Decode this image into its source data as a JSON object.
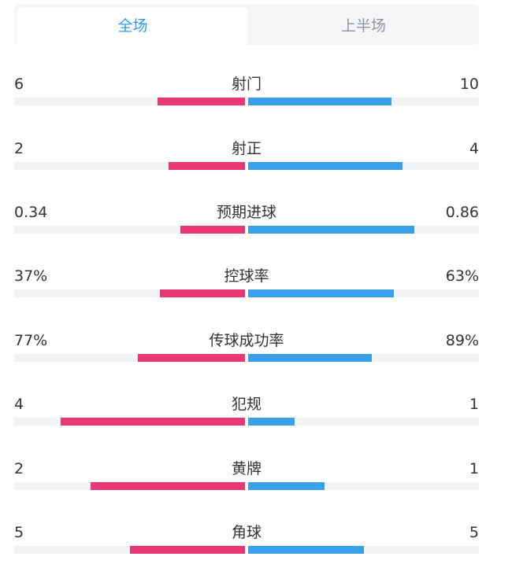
{
  "tabs": {
    "full_match": "全场",
    "first_half": "上半场"
  },
  "colors": {
    "home_bar": "#e83774",
    "away_bar": "#3aa0ea",
    "active_tab": "#2f9be8"
  },
  "stats": [
    {
      "label": "射门",
      "home": "6",
      "away": "10",
      "home_fill": 0.38,
      "away_fill": 0.62
    },
    {
      "label": "射正",
      "home": "2",
      "away": "4",
      "home_fill": 0.33,
      "away_fill": 0.67
    },
    {
      "label": "预期进球",
      "home": "0.34",
      "away": "0.86",
      "home_fill": 0.28,
      "away_fill": 0.72
    },
    {
      "label": "控球率",
      "home": "37%",
      "away": "63%",
      "home_fill": 0.37,
      "away_fill": 0.63
    },
    {
      "label": "传球成功率",
      "home": "77%",
      "away": "89%",
      "home_fill": 0.465,
      "away_fill": 0.535
    },
    {
      "label": "犯规",
      "home": "4",
      "away": "1",
      "home_fill": 0.8,
      "away_fill": 0.2
    },
    {
      "label": "黄牌",
      "home": "2",
      "away": "1",
      "home_fill": 0.67,
      "away_fill": 0.33
    },
    {
      "label": "角球",
      "home": "5",
      "away": "5",
      "home_fill": 0.5,
      "away_fill": 0.5
    }
  ]
}
